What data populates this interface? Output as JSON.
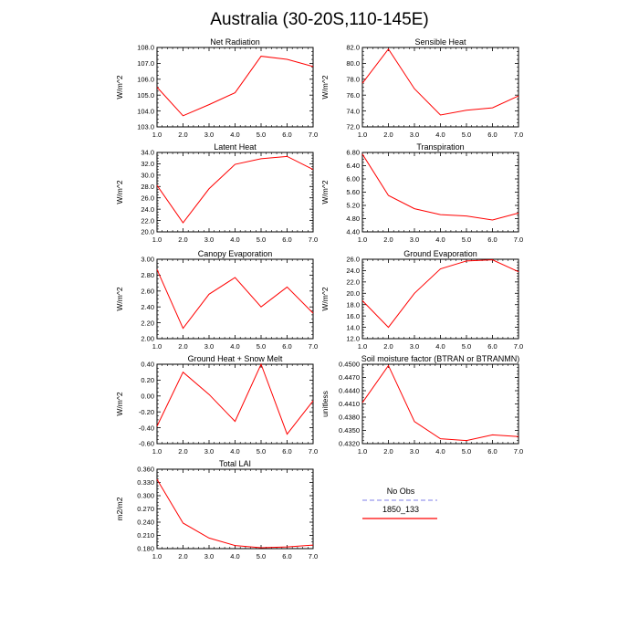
{
  "figure": {
    "title": "Australia (30-20S,110-145E)"
  },
  "legend": {
    "items": [
      {
        "label": "No Obs",
        "color": "#9999ee",
        "style": "dashed"
      },
      {
        "label": "1850_133",
        "color": "#ff0000",
        "style": "solid"
      }
    ]
  },
  "chart_data": [
    {
      "type": "line",
      "title": "Net Radiation",
      "ylabel": "W/m^2",
      "x": [
        1,
        2,
        3,
        4,
        5,
        6,
        7
      ],
      "xlim": [
        1,
        7
      ],
      "xticks": [
        "1.0",
        "2.0",
        "3.0",
        "4.0",
        "5.0",
        "6.0",
        "7.0"
      ],
      "ylim": [
        103.0,
        108.0
      ],
      "yticks": [
        "103.0",
        "104.0",
        "105.0",
        "106.0",
        "107.0",
        "108.0"
      ],
      "series": [
        {
          "name": "1850_133",
          "color": "#ff0000",
          "values": [
            105.5,
            103.7,
            104.4,
            105.15,
            107.45,
            107.25,
            106.8
          ]
        }
      ]
    },
    {
      "type": "line",
      "title": "Sensible Heat",
      "ylabel": "W/m^2",
      "x": [
        1,
        2,
        3,
        4,
        5,
        6,
        7
      ],
      "xlim": [
        1,
        7
      ],
      "xticks": [
        "1.0",
        "2.0",
        "3.0",
        "4.0",
        "5.0",
        "6.0",
        "7.0"
      ],
      "ylim": [
        72.0,
        82.0
      ],
      "yticks": [
        "72.0",
        "74.0",
        "76.0",
        "78.0",
        "80.0",
        "82.0"
      ],
      "series": [
        {
          "name": "1850_133",
          "color": "#ff0000",
          "values": [
            77.5,
            81.8,
            76.8,
            73.5,
            74.1,
            74.4,
            75.9
          ]
        }
      ]
    },
    {
      "type": "line",
      "title": "Latent Heat",
      "ylabel": "W/m^2",
      "x": [
        1,
        2,
        3,
        4,
        5,
        6,
        7
      ],
      "xlim": [
        1,
        7
      ],
      "xticks": [
        "1.0",
        "2.0",
        "3.0",
        "4.0",
        "5.0",
        "6.0",
        "7.0"
      ],
      "ylim": [
        20.0,
        34.0
      ],
      "yticks": [
        "20.0",
        "22.0",
        "24.0",
        "26.0",
        "28.0",
        "30.0",
        "32.0",
        "34.0"
      ],
      "series": [
        {
          "name": "1850_133",
          "color": "#ff0000",
          "values": [
            28.2,
            21.6,
            27.6,
            31.9,
            32.9,
            33.3,
            31.0
          ]
        }
      ]
    },
    {
      "type": "line",
      "title": "Transpiration",
      "ylabel": "W/m^2",
      "x": [
        1,
        2,
        3,
        4,
        5,
        6,
        7
      ],
      "xlim": [
        1,
        7
      ],
      "xticks": [
        "1.0",
        "2.0",
        "3.0",
        "4.0",
        "5.0",
        "6.0",
        "7.0"
      ],
      "ylim": [
        4.4,
        6.8
      ],
      "yticks": [
        "4.40",
        "4.80",
        "5.20",
        "5.60",
        "6.00",
        "6.40",
        "6.80"
      ],
      "series": [
        {
          "name": "1850_133",
          "color": "#ff0000",
          "values": [
            6.75,
            5.5,
            5.1,
            4.92,
            4.88,
            4.76,
            4.97
          ]
        }
      ]
    },
    {
      "type": "line",
      "title": "Canopy Evaporation",
      "ylabel": "W/m^2",
      "x": [
        1,
        2,
        3,
        4,
        5,
        6,
        7
      ],
      "xlim": [
        1,
        7
      ],
      "xticks": [
        "1.0",
        "2.0",
        "3.0",
        "4.0",
        "5.0",
        "6.0",
        "7.0"
      ],
      "ylim": [
        2.0,
        3.0
      ],
      "yticks": [
        "2.00",
        "2.20",
        "2.40",
        "2.60",
        "2.80",
        "3.00"
      ],
      "series": [
        {
          "name": "1850_133",
          "color": "#ff0000",
          "values": [
            2.87,
            2.13,
            2.56,
            2.77,
            2.4,
            2.65,
            2.32
          ]
        }
      ]
    },
    {
      "type": "line",
      "title": "Ground Evaporation",
      "ylabel": "W/m^2",
      "x": [
        1,
        2,
        3,
        4,
        5,
        6,
        7
      ],
      "xlim": [
        1,
        7
      ],
      "xticks": [
        "1.0",
        "2.0",
        "3.0",
        "4.0",
        "5.0",
        "6.0",
        "7.0"
      ],
      "ylim": [
        12.0,
        26.0
      ],
      "yticks": [
        "12.0",
        "14.0",
        "16.0",
        "18.0",
        "20.0",
        "22.0",
        "24.0",
        "26.0"
      ],
      "series": [
        {
          "name": "1850_133",
          "color": "#ff0000",
          "values": [
            18.7,
            14.0,
            20.0,
            24.3,
            25.7,
            25.9,
            23.8
          ]
        }
      ]
    },
    {
      "type": "line",
      "title": "Ground Heat + Snow Melt",
      "ylabel": "W/m^2",
      "x": [
        1,
        2,
        3,
        4,
        5,
        6,
        7
      ],
      "xlim": [
        1,
        7
      ],
      "xticks": [
        "1.0",
        "2.0",
        "3.0",
        "4.0",
        "5.0",
        "6.0",
        "7.0"
      ],
      "ylim": [
        -0.6,
        0.4
      ],
      "yticks": [
        "-0.60",
        "-0.40",
        "-0.20",
        "0.00",
        "0.20",
        "0.40"
      ],
      "series": [
        {
          "name": "1850_133",
          "color": "#ff0000",
          "values": [
            -0.38,
            0.3,
            0.02,
            -0.32,
            0.4,
            -0.48,
            -0.06
          ]
        }
      ]
    },
    {
      "type": "line",
      "title": "Soil moisture factor (BTRAN or BTRANMN)",
      "ylabel": "unitless",
      "x": [
        1,
        2,
        3,
        4,
        5,
        6,
        7
      ],
      "xlim": [
        1,
        7
      ],
      "xticks": [
        "1.0",
        "2.0",
        "3.0",
        "4.0",
        "5.0",
        "6.0",
        "7.0"
      ],
      "ylim": [
        0.432,
        0.45
      ],
      "yticks": [
        "0.4320",
        "0.4350",
        "0.4380",
        "0.4410",
        "0.4440",
        "0.4470",
        "0.4500"
      ],
      "series": [
        {
          "name": "1850_133",
          "color": "#ff0000",
          "values": [
            0.4413,
            0.4497,
            0.437,
            0.4331,
            0.4327,
            0.434,
            0.4336
          ]
        }
      ]
    },
    {
      "type": "line",
      "title": "Total LAI",
      "ylabel": "m2/m2",
      "x": [
        1,
        2,
        3,
        4,
        5,
        6,
        7
      ],
      "xlim": [
        1,
        7
      ],
      "xticks": [
        "1.0",
        "2.0",
        "3.0",
        "4.0",
        "5.0",
        "6.0",
        "7.0"
      ],
      "ylim": [
        0.18,
        0.36
      ],
      "yticks": [
        "0.180",
        "0.210",
        "0.240",
        "0.270",
        "0.300",
        "0.330",
        "0.360"
      ],
      "series": [
        {
          "name": "1850_133",
          "color": "#ff0000",
          "values": [
            0.337,
            0.238,
            0.204,
            0.187,
            0.182,
            0.184,
            0.188
          ]
        }
      ]
    }
  ]
}
